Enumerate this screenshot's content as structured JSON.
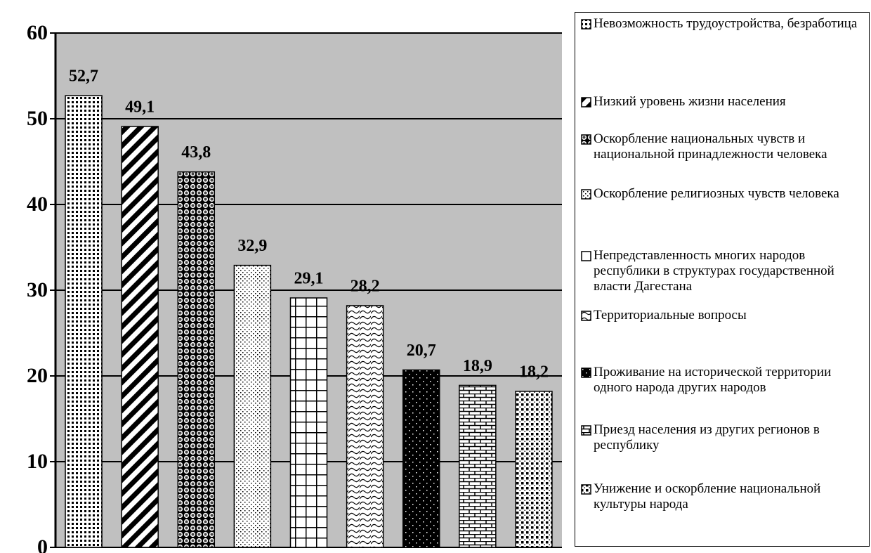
{
  "chart_data": {
    "type": "bar",
    "categories": [
      "Невозможность трудоустройства, безработица",
      "Низкий уровень жизни населения",
      "Оскорбление национальных чувств и национальной принадлежности человека",
      "Оскорбление религиозных чувств человека",
      "Непредставленность многих народов республики в структурах государственной власти Дагестана",
      "Территориальные вопросы",
      "Проживание на исторической территории одного народа других народов",
      "Приезд населения из других регионов в республику",
      "Унижение и оскорбление национальной культуры народа"
    ],
    "values": [
      52.7,
      49.1,
      43.8,
      32.9,
      29.1,
      28.2,
      20.7,
      18.9,
      18.2
    ],
    "value_labels": [
      "52,7",
      "49,1",
      "43,8",
      "32,9",
      "29,1",
      "28,2",
      "20,7",
      "18,9",
      "18,2"
    ],
    "ylim": [
      0,
      60
    ],
    "yticks": [
      0,
      10,
      20,
      30,
      40,
      50,
      60
    ],
    "grid": true,
    "plot_background": "#c0c0c0",
    "color": "#000000"
  }
}
